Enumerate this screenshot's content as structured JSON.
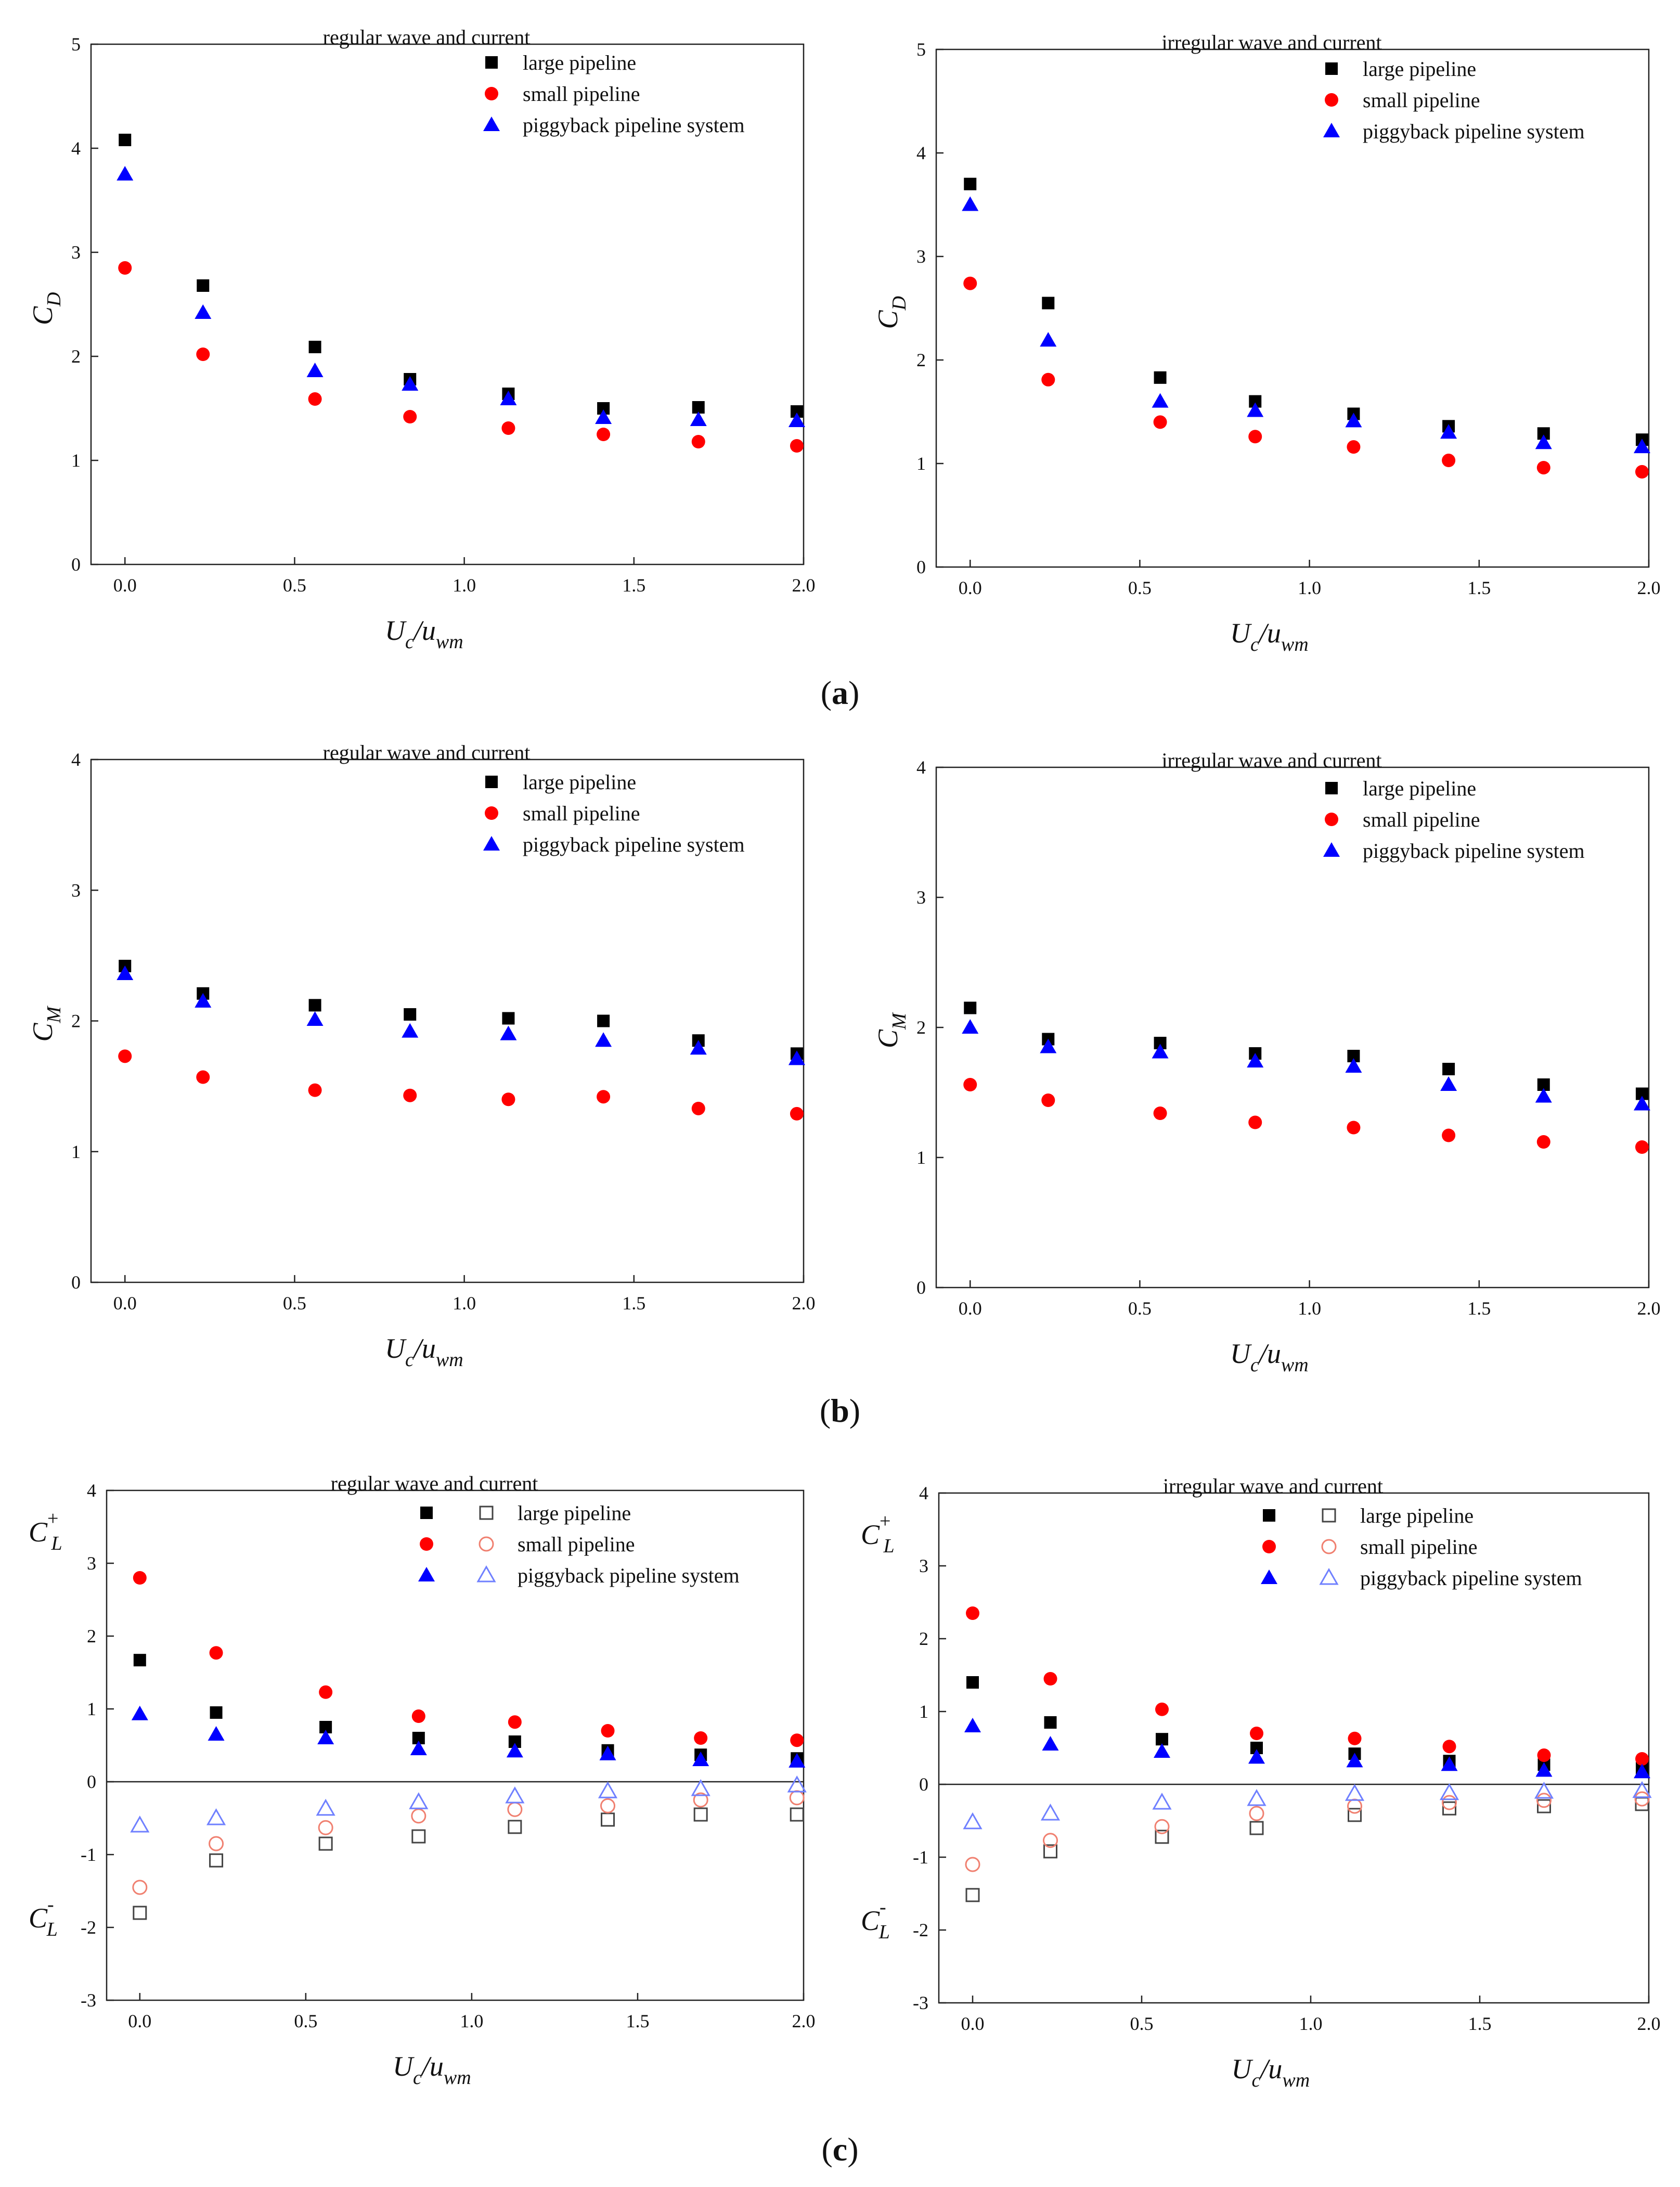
{
  "colors": {
    "large": "#000000",
    "small": "#ff0000",
    "piggy": "#0000ff",
    "small_hollow": "#f08070",
    "piggy_hollow": "#6f80ff",
    "large_hollow": "#444444"
  },
  "panel_labels": [
    {
      "open": "(",
      "letter": "a",
      "close": ")"
    },
    {
      "open": "(",
      "letter": "b",
      "close": ")"
    },
    {
      "open": "(",
      "letter": "c",
      "close": ")"
    }
  ],
  "chart_data": [
    {
      "id": "a-left",
      "type": "scatter",
      "title": "regular wave and current",
      "xlabel": {
        "main": "U",
        "sub": "c",
        "sep": "/u",
        "sub2": "wm"
      },
      "ylabel": {
        "main": "C",
        "sub": "D"
      },
      "xlim": [
        -0.1,
        2.0
      ],
      "ylim": [
        0,
        5
      ],
      "xticks": [
        "0.0",
        "0.5",
        "1.0",
        "1.5",
        "2.0"
      ],
      "xtick_values": [
        0,
        0.5,
        1.0,
        1.5,
        2.0
      ],
      "yticks": [
        "0",
        "1",
        "2",
        "3",
        "4",
        "5"
      ],
      "ytick_values": [
        0,
        1,
        2,
        3,
        4,
        5
      ],
      "x": [
        0.0,
        0.23,
        0.56,
        0.84,
        1.13,
        1.41,
        1.69,
        1.98
      ],
      "series": [
        {
          "name": "large pipeline",
          "marker": "square",
          "color": "#000000",
          "values": [
            4.08,
            2.68,
            2.09,
            1.78,
            1.64,
            1.5,
            1.51,
            1.47
          ]
        },
        {
          "name": "small pipeline",
          "marker": "circle",
          "color": "#ff0000",
          "values": [
            2.85,
            2.02,
            1.59,
            1.42,
            1.31,
            1.25,
            1.18,
            1.14
          ]
        },
        {
          "name": "piggyback pipeline system",
          "marker": "triangle",
          "color": "#0000ff",
          "values": [
            3.75,
            2.42,
            1.86,
            1.73,
            1.59,
            1.41,
            1.39,
            1.38
          ]
        }
      ]
    },
    {
      "id": "a-right",
      "type": "scatter",
      "title": "irregular wave and current",
      "xlabel": {
        "main": "U",
        "sub": "c",
        "sep": "/u",
        "sub2": "wm"
      },
      "ylabel": {
        "main": "C",
        "sub": "D"
      },
      "xlim": [
        -0.1,
        2.0
      ],
      "ylim": [
        0,
        5
      ],
      "xticks": [
        "0.0",
        "0.5",
        "1.0",
        "1.5",
        "2.0"
      ],
      "xtick_values": [
        0,
        0.5,
        1.0,
        1.5,
        2.0
      ],
      "yticks": [
        "0",
        "1",
        "2",
        "3",
        "4",
        "5"
      ],
      "ytick_values": [
        0,
        1,
        2,
        3,
        4,
        5
      ],
      "x": [
        0.0,
        0.23,
        0.56,
        0.84,
        1.13,
        1.41,
        1.69,
        1.98
      ],
      "series": [
        {
          "name": "large pipeline",
          "marker": "square",
          "color": "#000000",
          "values": [
            3.7,
            2.55,
            1.83,
            1.6,
            1.48,
            1.36,
            1.29,
            1.23
          ]
        },
        {
          "name": "small pipeline",
          "marker": "circle",
          "color": "#ff0000",
          "values": [
            2.74,
            1.81,
            1.4,
            1.26,
            1.16,
            1.03,
            0.96,
            0.92
          ]
        },
        {
          "name": "piggyback pipeline system",
          "marker": "triangle",
          "color": "#0000ff",
          "values": [
            3.5,
            2.19,
            1.6,
            1.51,
            1.41,
            1.3,
            1.2,
            1.16
          ]
        }
      ]
    },
    {
      "id": "b-left",
      "type": "scatter",
      "title": "regular wave and current",
      "xlabel": {
        "main": "U",
        "sub": "c",
        "sep": "/u",
        "sub2": "wm"
      },
      "ylabel": {
        "main": "C",
        "sub": "M"
      },
      "xlim": [
        -0.1,
        2.0
      ],
      "ylim": [
        0,
        4
      ],
      "xticks": [
        "0.0",
        "0.5",
        "1.0",
        "1.5",
        "2.0"
      ],
      "xtick_values": [
        0,
        0.5,
        1.0,
        1.5,
        2.0
      ],
      "yticks": [
        "0",
        "1",
        "2",
        "3",
        "4"
      ],
      "ytick_values": [
        0,
        1,
        2,
        3,
        4
      ],
      "x": [
        0.0,
        0.23,
        0.56,
        0.84,
        1.13,
        1.41,
        1.69,
        1.98
      ],
      "series": [
        {
          "name": "large pipeline",
          "marker": "square",
          "color": "#000000",
          "values": [
            2.42,
            2.21,
            2.12,
            2.05,
            2.02,
            2.0,
            1.85,
            1.75
          ]
        },
        {
          "name": "small pipeline",
          "marker": "circle",
          "color": "#ff0000",
          "values": [
            1.73,
            1.57,
            1.47,
            1.43,
            1.4,
            1.42,
            1.33,
            1.29
          ]
        },
        {
          "name": "piggyback pipeline system",
          "marker": "triangle",
          "color": "#0000ff",
          "values": [
            2.36,
            2.15,
            2.01,
            1.92,
            1.9,
            1.85,
            1.79,
            1.71
          ]
        }
      ]
    },
    {
      "id": "b-right",
      "type": "scatter",
      "title": "irregular wave and current",
      "xlabel": {
        "main": "U",
        "sub": "c",
        "sep": "/u",
        "sub2": "wm"
      },
      "ylabel": {
        "main": "C",
        "sub": "M"
      },
      "xlim": [
        -0.1,
        2.0
      ],
      "ylim": [
        0,
        4
      ],
      "xticks": [
        "0.0",
        "0.5",
        "1.0",
        "1.5",
        "2.0"
      ],
      "xtick_values": [
        0,
        0.5,
        1.0,
        1.5,
        2.0
      ],
      "yticks": [
        "0",
        "1",
        "2",
        "3",
        "4"
      ],
      "ytick_values": [
        0,
        1,
        2,
        3,
        4
      ],
      "x": [
        0.0,
        0.23,
        0.56,
        0.84,
        1.13,
        1.41,
        1.69,
        1.98
      ],
      "series": [
        {
          "name": "large pipeline",
          "marker": "square",
          "color": "#000000",
          "values": [
            2.15,
            1.91,
            1.88,
            1.8,
            1.78,
            1.68,
            1.56,
            1.49
          ]
        },
        {
          "name": "small pipeline",
          "marker": "circle",
          "color": "#ff0000",
          "values": [
            1.56,
            1.44,
            1.34,
            1.27,
            1.23,
            1.17,
            1.12,
            1.08
          ]
        },
        {
          "name": "piggyback pipeline system",
          "marker": "triangle",
          "color": "#0000ff",
          "values": [
            2.0,
            1.85,
            1.81,
            1.74,
            1.7,
            1.56,
            1.47,
            1.41
          ]
        }
      ]
    },
    {
      "id": "c-left",
      "type": "scatter",
      "title": "regular wave and current",
      "xlabel": {
        "main": "U",
        "sub": "c",
        "sep": "/u",
        "sub2": "wm"
      },
      "ylabel_top": {
        "main": "C",
        "sub": "L",
        "sup": "+"
      },
      "ylabel_bottom": {
        "main": "C",
        "sub": "L",
        "sup": "-"
      },
      "xlim": [
        -0.1,
        2.0
      ],
      "ylim": [
        -3,
        4
      ],
      "zero_line": true,
      "xticks": [
        "0.0",
        "0.5",
        "1.0",
        "1.5",
        "2.0"
      ],
      "xtick_values": [
        0,
        0.5,
        1.0,
        1.5,
        2.0
      ],
      "yticks": [
        "-3",
        "-2",
        "-1",
        "0",
        "1",
        "2",
        "3",
        "4"
      ],
      "ytick_values": [
        -3,
        -2,
        -1,
        0,
        1,
        2,
        3,
        4
      ],
      "x": [
        0.0,
        0.23,
        0.56,
        0.84,
        1.13,
        1.41,
        1.69,
        1.98
      ],
      "series": [
        {
          "name": "large pipeline",
          "marker": "square",
          "color": "#000000",
          "values": [
            1.67,
            0.95,
            0.75,
            0.6,
            0.55,
            0.43,
            0.37,
            0.32
          ]
        },
        {
          "name": "small pipeline",
          "marker": "circle",
          "color": "#ff0000",
          "values": [
            2.8,
            1.77,
            1.23,
            0.9,
            0.82,
            0.7,
            0.6,
            0.57
          ]
        },
        {
          "name": "piggyback pipeline system",
          "marker": "triangle",
          "color": "#0000ff",
          "values": [
            0.93,
            0.65,
            0.6,
            0.45,
            0.42,
            0.38,
            0.3,
            0.28
          ]
        },
        {
          "name": "large pipeline",
          "marker": "square-open",
          "color": "#444444",
          "values": [
            -1.8,
            -1.08,
            -0.85,
            -0.75,
            -0.62,
            -0.52,
            -0.45,
            -0.45
          ]
        },
        {
          "name": "small pipeline",
          "marker": "circle-open",
          "color": "#f08070",
          "values": [
            -1.45,
            -0.85,
            -0.63,
            -0.47,
            -0.38,
            -0.33,
            -0.25,
            -0.22
          ]
        },
        {
          "name": "piggyback pipeline system",
          "marker": "triangle-open",
          "color": "#6f80ff",
          "values": [
            -0.6,
            -0.5,
            -0.37,
            -0.28,
            -0.2,
            -0.13,
            -0.1,
            -0.05
          ]
        }
      ]
    },
    {
      "id": "c-right",
      "type": "scatter",
      "title": "irregular wave and current",
      "xlabel": {
        "main": "U",
        "sub": "c",
        "sep": "/u",
        "sub2": "wm"
      },
      "ylabel_top": {
        "main": "C",
        "sub": "L",
        "sup": "+"
      },
      "ylabel_bottom": {
        "main": "C",
        "sub": "L",
        "sup": "-"
      },
      "xlim": [
        -0.1,
        2.0
      ],
      "ylim": [
        -3,
        4
      ],
      "zero_line": true,
      "xticks": [
        "0.0",
        "0.5",
        "1.0",
        "1.5",
        "2.0"
      ],
      "xtick_values": [
        0,
        0.5,
        1.0,
        1.5,
        2.0
      ],
      "yticks": [
        "-3",
        "-2",
        "-1",
        "0",
        "1",
        "2",
        "3",
        "4"
      ],
      "ytick_values": [
        -3,
        -2,
        -1,
        0,
        1,
        2,
        3,
        4
      ],
      "x": [
        0.0,
        0.23,
        0.56,
        0.84,
        1.13,
        1.41,
        1.69,
        1.98
      ],
      "series": [
        {
          "name": "large pipeline",
          "marker": "square",
          "color": "#000000",
          "values": [
            1.4,
            0.85,
            0.62,
            0.5,
            0.42,
            0.32,
            0.27,
            0.22
          ]
        },
        {
          "name": "small pipeline",
          "marker": "circle",
          "color": "#ff0000",
          "values": [
            2.35,
            1.45,
            1.03,
            0.7,
            0.63,
            0.52,
            0.4,
            0.35
          ]
        },
        {
          "name": "piggyback pipeline system",
          "marker": "triangle",
          "color": "#0000ff",
          "values": [
            0.8,
            0.55,
            0.45,
            0.37,
            0.32,
            0.27,
            0.19,
            0.17
          ]
        },
        {
          "name": "large pipeline",
          "marker": "square-open",
          "color": "#444444",
          "values": [
            -1.52,
            -0.92,
            -0.72,
            -0.6,
            -0.42,
            -0.33,
            -0.3,
            -0.27
          ]
        },
        {
          "name": "small pipeline",
          "marker": "circle-open",
          "color": "#f08070",
          "values": [
            -1.1,
            -0.77,
            -0.58,
            -0.4,
            -0.3,
            -0.25,
            -0.22,
            -0.2
          ]
        },
        {
          "name": "piggyback pipeline system",
          "marker": "triangle-open",
          "color": "#6f80ff",
          "values": [
            -0.52,
            -0.4,
            -0.25,
            -0.2,
            -0.13,
            -0.12,
            -0.1,
            -0.09
          ]
        }
      ]
    }
  ]
}
